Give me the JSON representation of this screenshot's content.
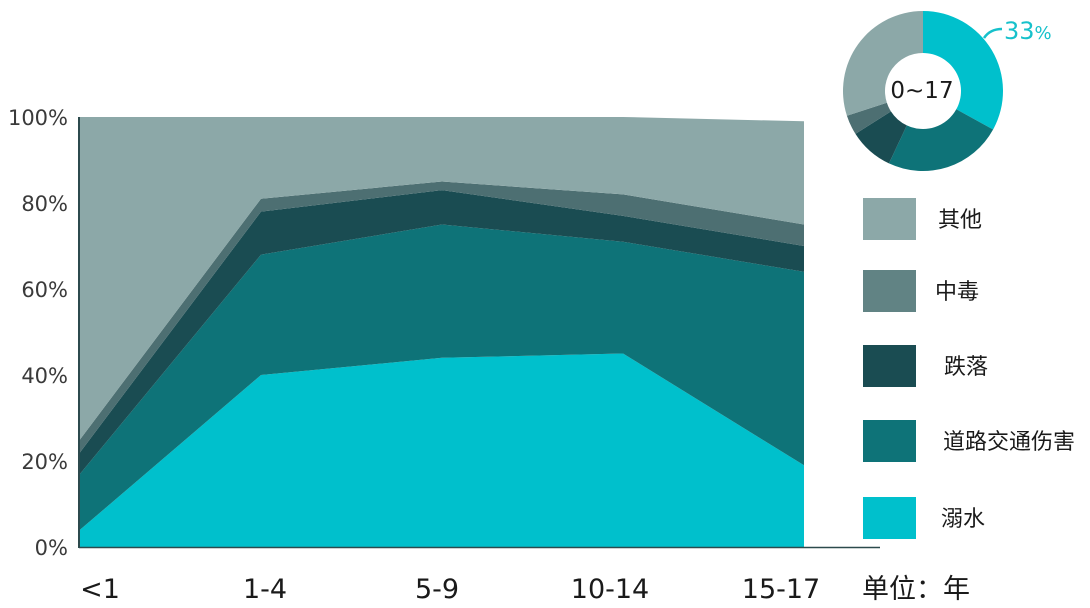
{
  "chart_data": [
    {
      "type": "area",
      "stacked": true,
      "normalized": true,
      "categories": [
        "<1",
        "1-4",
        "5-9",
        "10-14",
        "15-17"
      ],
      "series": [
        {
          "name": "溺水",
          "color": "#00c0cc",
          "values": [
            4,
            40,
            44,
            45,
            19
          ]
        },
        {
          "name": "道路交通伤害",
          "color": "#0e7378",
          "values": [
            13,
            28,
            31,
            26,
            45
          ]
        },
        {
          "name": "跌落",
          "color": "#1a4c52",
          "values": [
            5,
            10,
            8,
            6,
            6
          ]
        },
        {
          "name": "中毒",
          "color": "#4d6f72",
          "values": [
            3,
            3,
            2,
            5,
            5
          ]
        },
        {
          "name": "其他",
          "color": "#8ca8a8",
          "values": [
            75,
            19,
            15,
            18,
            24
          ]
        }
      ],
      "yticks": [
        "0%",
        "20%",
        "40%",
        "60%",
        "80%",
        "100%"
      ],
      "ylim": [
        0,
        100
      ],
      "unit_label": "单位：年",
      "legend_position": "right"
    },
    {
      "type": "pie",
      "center_label": "0~17",
      "highlight_value": "33",
      "highlight_unit": "%",
      "slices": [
        {
          "name": "溺水",
          "value": 33,
          "color": "#00c0cc"
        },
        {
          "name": "道路交通伤害",
          "value": 24,
          "color": "#0e7378"
        },
        {
          "name": "跌落",
          "value": 9,
          "color": "#1a4c52"
        },
        {
          "name": "中毒",
          "value": 4,
          "color": "#4d6f72"
        },
        {
          "name": "其他",
          "value": 30,
          "color": "#8ca8a8"
        }
      ]
    }
  ],
  "legend": [
    {
      "label": "其他",
      "color": "#8ca8a8"
    },
    {
      "label": "中毒",
      "color": "#618384"
    },
    {
      "label": "跌落",
      "color": "#1a4c52"
    },
    {
      "label": "道路交通伤害",
      "color": "#0e7378"
    },
    {
      "label": "溺水",
      "color": "#00c0cc"
    }
  ]
}
